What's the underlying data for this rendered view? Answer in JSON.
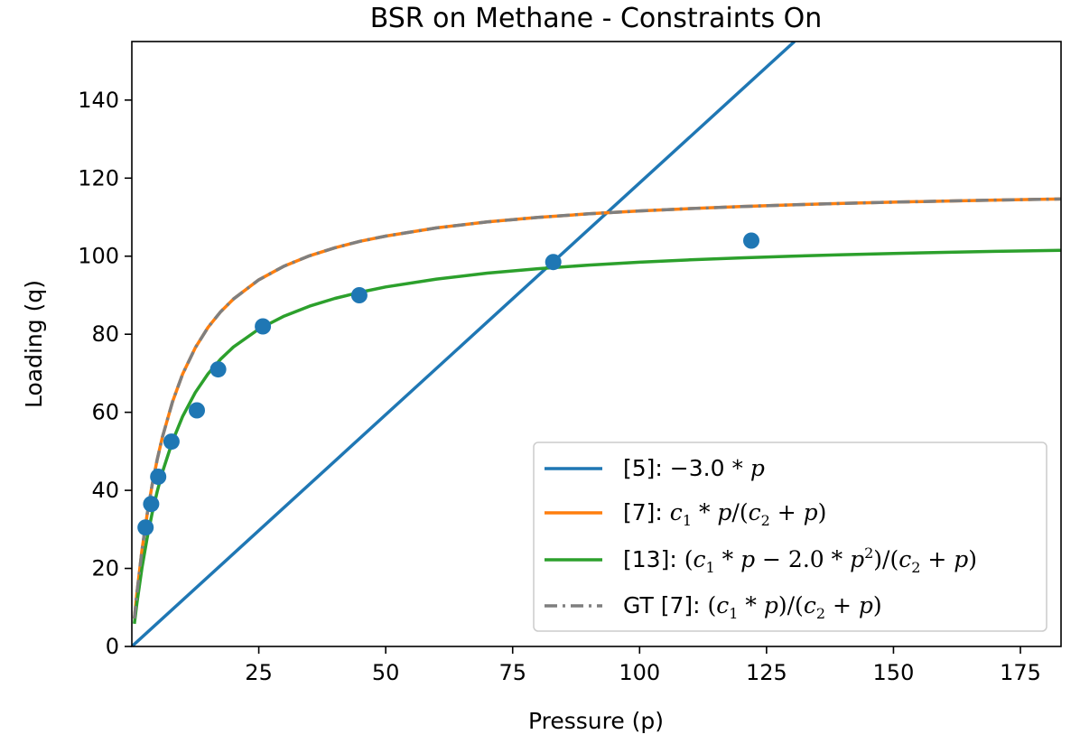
{
  "chart_data": {
    "type": "line",
    "title": "BSR on Methane - Constraints On",
    "xlabel": "Pressure (p)",
    "ylabel": "Loading (q)",
    "xlim": [
      0,
      183
    ],
    "ylim": [
      0,
      155
    ],
    "xticks": [
      25,
      50,
      75,
      100,
      125,
      150,
      175
    ],
    "yticks": [
      0,
      20,
      40,
      60,
      80,
      100,
      120,
      140
    ],
    "legend_position": "lower right",
    "scatter": {
      "color": "#1f77b4",
      "x": [
        2.7,
        3.8,
        5.2,
        7.8,
        12.8,
        17.0,
        25.8,
        44.8,
        83.0,
        122.0
      ],
      "y": [
        30.5,
        36.5,
        43.5,
        52.5,
        60.5,
        71.0,
        82.0,
        90.0,
        98.5,
        104.0
      ]
    },
    "series": [
      {
        "name": "[5]: −3.0 * p",
        "color": "#1f77b4",
        "style": "solid",
        "x": [
          0,
          130.5
        ],
        "y": [
          0,
          155
        ]
      },
      {
        "name": "[7]: c1 * p/(c2 + p)",
        "color": "#ff7f0e",
        "style": "solid",
        "x": [
          0.5,
          1,
          2,
          3,
          4,
          5,
          6,
          8,
          10,
          12.5,
          15,
          17.5,
          20,
          25,
          30,
          35,
          40,
          45,
          50,
          60,
          70,
          80,
          90,
          100,
          110,
          120,
          130,
          140,
          150,
          160,
          170,
          183
        ],
        "y": [
          7.16,
          13.6,
          24.64,
          33.78,
          41.41,
          47.91,
          53.52,
          62.68,
          69.78,
          76.55,
          81.73,
          85.78,
          89.02,
          93.95,
          97.47,
          100.11,
          102.17,
          103.82,
          105.15,
          107.24,
          108.77,
          109.94,
          110.86,
          111.6,
          112.21,
          112.72,
          113.15,
          113.52,
          113.84,
          114.13,
          114.38,
          114.65
        ]
      },
      {
        "name": "[13]: (c1 * p − 2.0 * p²)/(c2 + p)",
        "color": "#2ca02c",
        "style": "solid",
        "x": [
          0.5,
          1,
          2,
          3,
          4,
          5,
          6,
          8,
          10,
          12.5,
          15,
          17.5,
          20,
          25,
          30,
          35,
          40,
          45,
          50,
          60,
          70,
          80,
          90,
          100,
          110,
          120,
          130,
          140,
          150,
          160,
          170,
          183
        ],
        "y": [
          5.8,
          11.05,
          20.13,
          27.73,
          34.18,
          39.73,
          44.56,
          52.56,
          58.92,
          65.08,
          69.85,
          73.64,
          76.73,
          81.32,
          84.66,
          87.19,
          89.18,
          90.79,
          92.11,
          94.14,
          95.65,
          96.8,
          97.72,
          98.46,
          99.07,
          99.58,
          100.01,
          100.38,
          100.7,
          100.98,
          101.23,
          101.51
        ]
      },
      {
        "name": "GT [7]: (c1 * p)/(c2 + p)",
        "color": "#7f7f7f",
        "style": "dashdot",
        "x": [
          0.5,
          1,
          2,
          3,
          4,
          5,
          6,
          8,
          10,
          12.5,
          15,
          17.5,
          20,
          25,
          30,
          35,
          40,
          45,
          50,
          60,
          70,
          80,
          90,
          100,
          110,
          120,
          130,
          140,
          150,
          160,
          170,
          183
        ],
        "y": [
          7.16,
          13.6,
          24.64,
          33.78,
          41.41,
          47.91,
          53.52,
          62.68,
          69.78,
          76.55,
          81.73,
          85.78,
          89.02,
          93.95,
          97.47,
          100.11,
          102.17,
          103.82,
          105.15,
          107.24,
          108.77,
          109.94,
          110.86,
          111.6,
          112.21,
          112.72,
          113.15,
          113.52,
          113.84,
          114.13,
          114.38,
          114.65
        ]
      }
    ]
  }
}
